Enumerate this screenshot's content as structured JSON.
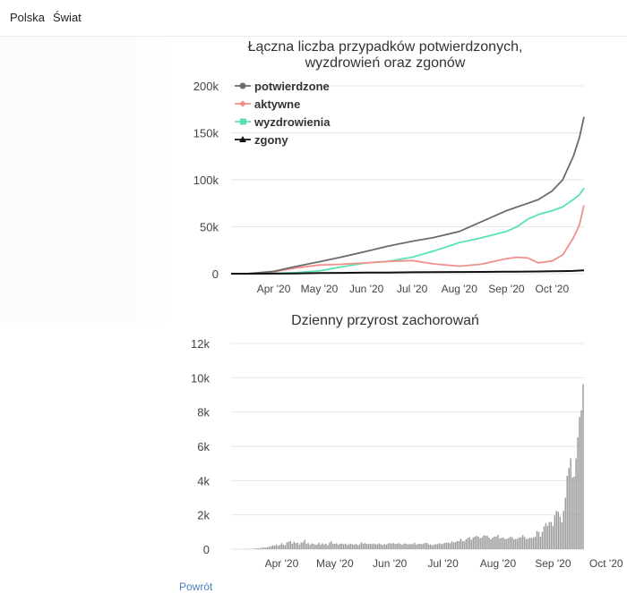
{
  "nav": {
    "tabs": [
      "Polska",
      "Świat"
    ]
  },
  "colors": {
    "potwierdzone": "#6b6b6b",
    "aktywne": "#f0908d",
    "wyzdrowienia": "#56e3b1",
    "zgony": "#111111",
    "bars": "#9a9a9a",
    "grid": "#e6e6e6"
  },
  "chart_data": [
    {
      "type": "line",
      "title_lines": [
        "Łączna liczba przypadków potwierdzonych,",
        "wyzdrowień oraz zgonów"
      ],
      "x_labels": [
        "Apr '20",
        "May '20",
        "Jun '20",
        "Jul '20",
        "Aug '20",
        "Sep '20",
        "Oct '20"
      ],
      "y_ticks": [
        "0",
        "50k",
        "100k",
        "150k",
        "200k"
      ],
      "ylim": [
        0,
        200000
      ],
      "legend": [
        "potwierdzone",
        "aktywne",
        "wyzdrowienia",
        "zgony"
      ],
      "x_dates": [
        "2020-03-04",
        "2020-03-15",
        "2020-04-01",
        "2020-04-15",
        "2020-05-01",
        "2020-05-15",
        "2020-06-01",
        "2020-06-15",
        "2020-07-01",
        "2020-07-15",
        "2020-08-01",
        "2020-08-15",
        "2020-09-01",
        "2020-09-08",
        "2020-09-15",
        "2020-09-22",
        "2020-10-01",
        "2020-10-08",
        "2020-10-15",
        "2020-10-19",
        "2020-10-22"
      ],
      "series": [
        {
          "name": "potwierdzone",
          "values": [
            0,
            100,
            2500,
            7500,
            12800,
            17500,
            23800,
            29200,
            34500,
            38500,
            45000,
            55000,
            67000,
            71000,
            75000,
            79000,
            88000,
            100000,
            125000,
            145000,
            167000
          ]
        },
        {
          "name": "aktywne",
          "values": [
            0,
            90,
            2000,
            6000,
            9200,
            10000,
            11500,
            13000,
            14000,
            10500,
            8000,
            10000,
            16000,
            17500,
            16800,
            11500,
            13500,
            20000,
            38000,
            52000,
            73000
          ]
        },
        {
          "name": "wyzdrowienia",
          "values": [
            0,
            5,
            300,
            1000,
            3000,
            7000,
            11500,
            13000,
            17500,
            24000,
            33000,
            38000,
            45000,
            50000,
            58000,
            63000,
            67000,
            71000,
            79000,
            84000,
            91000
          ]
        },
        {
          "name": "zgony",
          "values": [
            0,
            0,
            100,
            300,
            700,
            900,
            1100,
            1200,
            1500,
            1650,
            1800,
            1900,
            2100,
            2200,
            2300,
            2400,
            2600,
            2800,
            3000,
            3300,
            3600
          ]
        }
      ]
    },
    {
      "type": "bar",
      "title": "Dzienny przyrost zachorowań",
      "x_labels": [
        "Apr '20",
        "May '20",
        "Jun '20",
        "Jul '20",
        "Aug '20",
        "Sep '20",
        "Oct '20"
      ],
      "y_ticks": [
        "0",
        "2k",
        "4k",
        "6k",
        "8k",
        "10k",
        "12k"
      ],
      "ylim": [
        0,
        12000
      ],
      "start_date": "2020-03-04",
      "values": [
        0,
        0,
        5,
        0,
        6,
        6,
        0,
        13,
        8,
        12,
        11,
        7,
        11,
        45,
        47,
        56,
        63,
        81,
        110,
        84,
        115,
        140,
        168,
        224,
        201,
        271,
        191,
        248,
        356,
        256,
        228,
        392,
        437,
        475,
        311,
        435,
        357,
        370,
        268,
        380,
        401,
        545,
        318,
        355,
        261,
        336,
        307,
        263,
        270,
        375,
        263,
        340,
        290,
        316,
        235,
        380,
        460,
        306,
        312,
        330,
        261,
        318,
        330,
        286,
        327,
        249,
        295,
        325,
        280,
        264,
        308,
        236,
        280,
        398,
        313,
        357,
        312,
        300,
        321,
        295,
        333,
        290,
        281,
        344,
        286,
        235,
        300,
        271,
        320,
        359,
        319,
        357,
        307,
        316,
        350,
        304,
        265,
        330,
        318,
        283,
        296,
        304,
        288,
        369,
        276,
        311,
        315,
        297,
        325,
        364,
        362,
        269,
        279,
        228,
        273,
        292,
        300,
        342,
        303,
        333,
        360,
        379,
        389,
        344,
        453,
        396,
        409,
        477,
        464,
        616,
        484,
        453,
        571,
        652,
        705,
        543,
        679,
        728,
        777,
        729,
        639,
        688,
        807,
        789,
        778,
        671,
        578,
        675,
        739,
        728,
        841,
        632,
        656,
        676,
        586,
        600,
        646,
        722,
        693,
        575,
        595,
        603,
        684,
        688,
        825,
        711,
        598,
        613,
        670,
        643,
        689,
        725,
        1058,
        1007,
        734,
        1005,
        1326,
        1502,
        1364,
        1592,
        1583,
        1350,
        1965,
        2249,
        2176,
        1892,
        1567,
        2236,
        3003,
        4280,
        4739,
        5300,
        4178,
        4227,
        5300,
        6526,
        7705,
        8099,
        9622
      ]
    }
  ],
  "footer": {
    "link_text": "Powrót"
  }
}
